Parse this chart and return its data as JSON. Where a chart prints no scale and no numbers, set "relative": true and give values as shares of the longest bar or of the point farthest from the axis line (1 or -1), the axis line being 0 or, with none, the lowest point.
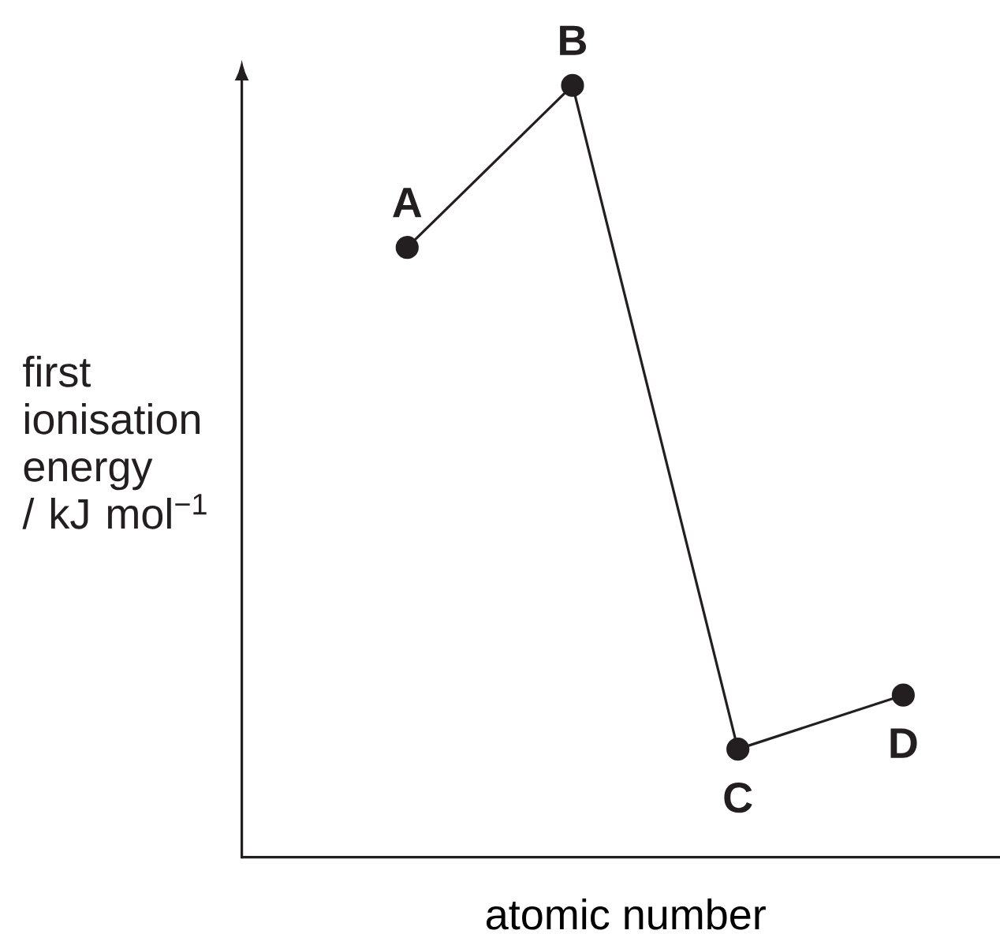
{
  "chart_data": {
    "type": "line",
    "xlabel": "atomic number",
    "ylabel": "first ionisation energy / kJ mol$^{−1}$",
    "categories": [
      null,
      null,
      null,
      null
    ],
    "values": [
      0.79,
      1,
      0.14,
      0.21
    ],
    "color": "#231f20",
    "relative": true,
    "marker": "circle",
    "line_style": "solid",
    "annotations": [
      {
        "text": "A",
        "y": 0.79
      },
      {
        "text": "B",
        "y": 1
      },
      {
        "text": "C",
        "y": 0.14
      },
      {
        "text": "D",
        "y": 0.21
      }
    ]
  }
}
